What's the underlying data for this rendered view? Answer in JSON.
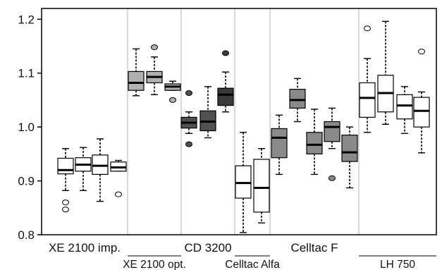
{
  "chart_data": {
    "type": "box",
    "ylim": [
      0.8,
      1.22
    ],
    "yticks": [
      "0.8",
      "0.9",
      "1.0",
      "1.1",
      "1.2"
    ],
    "yticks_values": [
      0.8,
      0.9,
      1.0,
      1.1,
      1.2
    ],
    "grid": false,
    "groups": [
      {
        "label": "XE 2100 imp.",
        "label_row": "top",
        "underline": false
      },
      {
        "label": "XE 2100 opt.",
        "label_row": "bottom",
        "underline": true
      },
      {
        "label": "CD 3200",
        "label_row": "top",
        "underline": false
      },
      {
        "label": "Celltac Alfa",
        "label_row": "bottom",
        "underline": true
      },
      {
        "label": "Celltac F",
        "label_row": "top",
        "underline": false
      },
      {
        "label": "LH 750",
        "label_row": "bottom",
        "underline": true
      }
    ],
    "boxes": [
      {
        "group": 0,
        "fill": "#ffffff",
        "q1": 0.913,
        "median": 0.92,
        "q3": 0.942,
        "wlo": 0.882,
        "whi": 0.96,
        "outliers": [
          0.86,
          0.847
        ]
      },
      {
        "group": 0,
        "fill": "#ffffff",
        "q1": 0.918,
        "median": 0.93,
        "q3": 0.943,
        "wlo": 0.882,
        "whi": 0.962,
        "outliers": []
      },
      {
        "group": 0,
        "fill": "#ffffff",
        "q1": 0.912,
        "median": 0.928,
        "q3": 0.948,
        "wlo": 0.862,
        "whi": 0.978,
        "outliers": []
      },
      {
        "group": 0,
        "fill": "#ffffff",
        "q1": 0.918,
        "median": 0.925,
        "q3": 0.935,
        "wlo": 0.918,
        "whi": 0.938,
        "outliers": [
          0.875
        ]
      },
      {
        "group": 1,
        "fill": "#b0b0b0",
        "q1": 1.068,
        "median": 1.082,
        "q3": 1.103,
        "wlo": 1.058,
        "whi": 1.145,
        "outliers": []
      },
      {
        "group": 1,
        "fill": "#b0b0b0",
        "q1": 1.082,
        "median": 1.093,
        "q3": 1.103,
        "wlo": 1.06,
        "whi": 1.13,
        "outliers": [
          1.148
        ]
      },
      {
        "group": 1,
        "fill": "#b0b0b0",
        "q1": 1.068,
        "median": 1.075,
        "q3": 1.08,
        "wlo": 1.068,
        "whi": 1.085,
        "outliers": [
          1.05
        ]
      },
      {
        "group": 2,
        "fill": "#505050",
        "q1": 0.998,
        "median": 1.008,
        "q3": 1.018,
        "wlo": 0.988,
        "whi": 1.028,
        "outliers": [
          1.063,
          0.968
        ]
      },
      {
        "group": 2,
        "fill": "#505050",
        "q1": 0.993,
        "median": 1.01,
        "q3": 1.03,
        "wlo": 0.98,
        "whi": 1.075,
        "outliers": []
      },
      {
        "group": 2,
        "fill": "#3a3a3a",
        "q1": 1.04,
        "median": 1.06,
        "q3": 1.072,
        "wlo": 1.028,
        "whi": 1.102,
        "outliers": [
          1.137
        ]
      },
      {
        "group": 3,
        "fill": "#ffffff",
        "q1": 0.868,
        "median": 0.896,
        "q3": 0.928,
        "wlo": 0.804,
        "whi": 0.99,
        "outliers": []
      },
      {
        "group": 3,
        "fill": "#ffffff",
        "q1": 0.842,
        "median": 0.887,
        "q3": 0.94,
        "wlo": 0.822,
        "whi": 0.96,
        "outliers": []
      },
      {
        "group": 4,
        "fill": "#8a8a8a",
        "q1": 0.943,
        "median": 0.98,
        "q3": 0.997,
        "wlo": 0.912,
        "whi": 1.022,
        "outliers": []
      },
      {
        "group": 4,
        "fill": "#8a8a8a",
        "q1": 1.035,
        "median": 1.05,
        "q3": 1.07,
        "wlo": 1.01,
        "whi": 1.09,
        "outliers": []
      },
      {
        "group": 4,
        "fill": "#8a8a8a",
        "q1": 0.95,
        "median": 0.967,
        "q3": 0.99,
        "wlo": 0.912,
        "whi": 1.033,
        "outliers": []
      },
      {
        "group": 4,
        "fill": "#8a8a8a",
        "q1": 0.973,
        "median": 1.0,
        "q3": 1.01,
        "wlo": 0.96,
        "whi": 1.035,
        "outliers": [
          0.905
        ]
      },
      {
        "group": 4,
        "fill": "#8a8a8a",
        "q1": 0.936,
        "median": 0.953,
        "q3": 0.985,
        "wlo": 0.887,
        "whi": 1.0,
        "outliers": []
      },
      {
        "group": 5,
        "fill": "#ffffff",
        "q1": 1.018,
        "median": 1.054,
        "q3": 1.082,
        "wlo": 0.99,
        "whi": 1.127,
        "outliers": [
          1.183
        ]
      },
      {
        "group": 5,
        "fill": "#ffffff",
        "q1": 1.028,
        "median": 1.063,
        "q3": 1.096,
        "wlo": 1.005,
        "whi": 1.196,
        "outliers": []
      },
      {
        "group": 5,
        "fill": "#ffffff",
        "q1": 1.015,
        "median": 1.04,
        "q3": 1.06,
        "wlo": 0.988,
        "whi": 1.075,
        "outliers": []
      },
      {
        "group": 5,
        "fill": "#ffffff",
        "q1": 1.0,
        "median": 1.03,
        "q3": 1.055,
        "wlo": 0.952,
        "whi": 1.065,
        "outliers": [
          1.14
        ]
      }
    ]
  }
}
